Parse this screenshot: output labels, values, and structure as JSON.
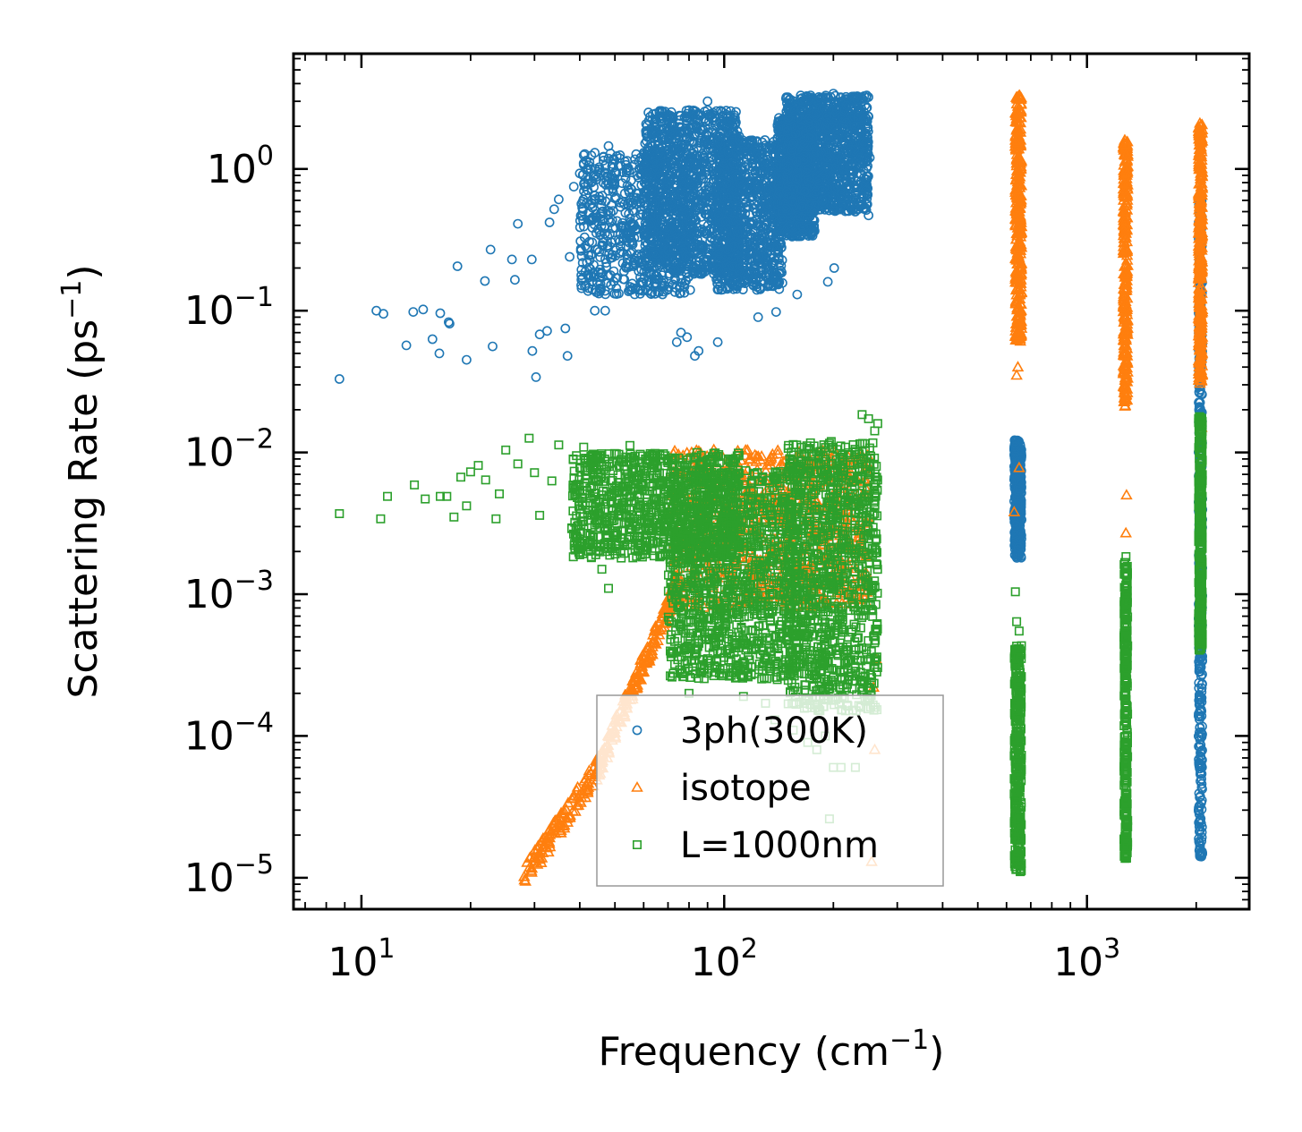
{
  "chart_data": {
    "type": "scatter",
    "xscale": "log",
    "yscale": "log",
    "xlim": [
      6.5,
      2800
    ],
    "ylim": [
      6e-06,
      6.5
    ],
    "xlabel": "Frequency (cm",
    "xlabel_sup": "−1",
    "xlabel_end": ")",
    "ylabel": "Scattering Rate (ps",
    "ylabel_sup": "−1",
    "ylabel_end": ")",
    "x_ticks": [
      {
        "value": 10,
        "base": "10",
        "exp": "1"
      },
      {
        "value": 100,
        "base": "10",
        "exp": "2"
      },
      {
        "value": 1000,
        "base": "10",
        "exp": "3"
      }
    ],
    "y_ticks": [
      {
        "value": 1,
        "base": "10",
        "exp": "0"
      },
      {
        "value": 0.1,
        "base": "10",
        "exp": "−1"
      },
      {
        "value": 0.01,
        "base": "10",
        "exp": "−2"
      },
      {
        "value": 0.001,
        "base": "10",
        "exp": "−3"
      },
      {
        "value": 0.0001,
        "base": "10",
        "exp": "−4"
      },
      {
        "value": 1e-05,
        "base": "10",
        "exp": "−5"
      }
    ],
    "legend_position": "lower-center",
    "series": [
      {
        "name": "3ph(300K)",
        "marker": "circle",
        "color": "#1f77b4",
        "points": [
          [
            8.7,
            0.033
          ],
          [
            11.0,
            0.1
          ],
          [
            11.5,
            0.095
          ],
          [
            13.3,
            0.057
          ],
          [
            13.9,
            0.098
          ],
          [
            14.8,
            0.102
          ],
          [
            16.5,
            0.096
          ],
          [
            15.7,
            0.063
          ],
          [
            16.4,
            0.05
          ],
          [
            17.5,
            0.081
          ],
          [
            17.4,
            0.083
          ],
          [
            19.5,
            0.045
          ],
          [
            18.4,
            0.206
          ],
          [
            21.9,
            0.162
          ],
          [
            23.0,
            0.056
          ],
          [
            22.7,
            0.27
          ],
          [
            26.0,
            0.23
          ],
          [
            26.5,
            0.165
          ],
          [
            27.0,
            0.41
          ],
          [
            29.5,
            0.23
          ],
          [
            29.6,
            0.052
          ],
          [
            30.3,
            0.034
          ],
          [
            31.0,
            0.068
          ],
          [
            32.5,
            0.072
          ],
          [
            33.0,
            0.42
          ],
          [
            34.0,
            0.52
          ],
          [
            35.0,
            0.61
          ],
          [
            36.5,
            0.075
          ],
          [
            37.0,
            0.048
          ],
          [
            37.5,
            0.24
          ],
          [
            38.5,
            0.75
          ],
          [
            40.0,
            0.93
          ],
          [
            41.0,
            1.25
          ],
          [
            43.0,
            0.8
          ],
          [
            44.0,
            1.3
          ],
          [
            44.0,
            0.1
          ],
          [
            46.0,
            0.5
          ],
          [
            47.0,
            0.1
          ],
          [
            48.0,
            1.45
          ],
          [
            50.0,
            0.62
          ],
          [
            52.0,
            1.05
          ],
          [
            55.0,
            0.6
          ],
          [
            58.0,
            0.25
          ],
          [
            60.0,
            1.3
          ],
          [
            74.0,
            0.06
          ],
          [
            76.0,
            0.07
          ],
          [
            79.0,
            0.065
          ],
          [
            83.0,
            0.048
          ],
          [
            85.0,
            0.052
          ],
          [
            96.0,
            0.06
          ],
          [
            124.0,
            0.09
          ],
          [
            139.0,
            0.098
          ],
          [
            159.0,
            0.13
          ],
          [
            193.0,
            0.16
          ],
          [
            201.0,
            0.2
          ],
          [
            233.0,
            0.77
          ],
          [
            250.0,
            0.47
          ],
          [
            247.0,
            2.7
          ],
          [
            252.0,
            1.2
          ],
          [
            190.0,
            3.2
          ],
          [
            200.0,
            3.4
          ],
          [
            170.0,
            3.1
          ],
          [
            150.0,
            2.3
          ],
          [
            110.0,
            1.7
          ],
          [
            90.0,
            3.0
          ],
          [
            80.0,
            2.6
          ],
          [
            102.0,
            0.27
          ],
          [
            130.0,
            0.55
          ]
        ],
        "clusters": [
          {
            "xmin": 40,
            "xmax": 82,
            "ymin": 0.13,
            "ymax": 1.3,
            "n": 700
          },
          {
            "xmin": 60,
            "xmax": 110,
            "ymin": 0.18,
            "ymax": 2.6,
            "n": 1100
          },
          {
            "xmin": 95,
            "xmax": 145,
            "ymin": 0.14,
            "ymax": 1.6,
            "n": 900
          },
          {
            "xmin": 140,
            "xmax": 178,
            "ymin": 0.33,
            "ymax": 2.3,
            "n": 700
          },
          {
            "xmin": 148,
            "xmax": 250,
            "ymin": 0.5,
            "ymax": 3.3,
            "n": 1200
          },
          {
            "xmin": 630,
            "xmax": 660,
            "ymin": 0.0018,
            "ymax": 0.0125,
            "n": 350
          },
          {
            "xmin": 2030,
            "xmax": 2080,
            "ymin": 1.4e-05,
            "ymax": 0.65,
            "n": 400
          }
        ]
      },
      {
        "name": "isotope",
        "marker": "triangle",
        "color": "#ff7f0e",
        "points": [
          [
            630.0,
            0.0038
          ],
          [
            650.0,
            0.0078
          ],
          [
            1285.0,
            0.005
          ],
          [
            1280.0,
            0.0027
          ],
          [
            260.0,
            8e-05
          ],
          [
            255.0,
            1.3e-05
          ],
          [
            258.0,
            0.00022
          ],
          [
            262.0,
            0.00035
          ],
          [
            640.0,
            0.035
          ],
          [
            645.0,
            0.04
          ],
          [
            1275.0,
            0.028
          ],
          [
            2070.0,
            0.015
          ],
          [
            2050.0,
            0.04
          ]
        ],
        "clusters": [
          {
            "xmin": 28,
            "xmax": 45,
            "ymin": 1e-05,
            "ymax": 6e-05,
            "n": 120,
            "trend": "power",
            "k": 3.8
          },
          {
            "xmin": 45,
            "xmax": 75,
            "ymin": 6e-05,
            "ymax": 0.0012,
            "n": 180,
            "trend": "power",
            "k": 3.8
          },
          {
            "xmin": 72,
            "xmax": 250,
            "ymin": 0.0008,
            "ymax": 0.0105,
            "n": 800
          },
          {
            "xmin": 635,
            "xmax": 660,
            "ymin": 0.06,
            "ymax": 3.3,
            "n": 350
          },
          {
            "xmin": 1260,
            "xmax": 1295,
            "ymin": 0.021,
            "ymax": 1.6,
            "n": 300
          },
          {
            "xmin": 2030,
            "xmax": 2080,
            "ymin": 0.03,
            "ymax": 2.1,
            "n": 350
          }
        ]
      },
      {
        "name": "L=1000nm",
        "marker": "square",
        "color": "#2ca02c",
        "points": [
          [
            8.7,
            0.0037
          ],
          [
            11.3,
            0.0034
          ],
          [
            11.8,
            0.0049
          ],
          [
            14.0,
            0.0059
          ],
          [
            15.0,
            0.0047
          ],
          [
            16.5,
            0.0049
          ],
          [
            17.2,
            0.0049
          ],
          [
            18.0,
            0.0035
          ],
          [
            18.8,
            0.0067
          ],
          [
            19.5,
            0.0042
          ],
          [
            20.0,
            0.0073
          ],
          [
            21.0,
            0.0081
          ],
          [
            22.0,
            0.0064
          ],
          [
            23.5,
            0.0034
          ],
          [
            24.0,
            0.0051
          ],
          [
            25.0,
            0.0104
          ],
          [
            27.0,
            0.0083
          ],
          [
            29.0,
            0.0126
          ],
          [
            30.0,
            0.0072
          ],
          [
            31.0,
            0.0036
          ],
          [
            33.5,
            0.0063
          ],
          [
            35.0,
            0.0113
          ],
          [
            38.0,
            0.0029
          ],
          [
            40.0,
            0.0019
          ],
          [
            41.0,
            0.0109
          ],
          [
            44.0,
            0.0087
          ],
          [
            46.0,
            0.0015
          ],
          [
            48.0,
            0.0011
          ],
          [
            52.0,
            0.0089
          ],
          [
            55.0,
            0.0112
          ],
          [
            80.0,
            0.0002
          ],
          [
            108.0,
            0.00035
          ],
          [
            113.0,
            0.00019
          ],
          [
            130.0,
            0.00017
          ],
          [
            138.0,
            0.00013
          ],
          [
            155.0,
            0.00011
          ],
          [
            170.0,
            9e-05
          ],
          [
            180.0,
            8e-05
          ],
          [
            190.0,
            0.0001
          ],
          [
            195.0,
            2.6e-05
          ],
          [
            200.0,
            6e-05
          ],
          [
            210.0,
            6e-05
          ],
          [
            230.0,
            6e-05
          ],
          [
            240.0,
            0.0185
          ],
          [
            250.0,
            0.0173
          ],
          [
            260.0,
            0.0142
          ],
          [
            265.0,
            0.016
          ],
          [
            635.0,
            0.00104
          ],
          [
            640.0,
            0.00064
          ],
          [
            650.0,
            0.00055
          ]
        ],
        "clusters": [
          {
            "xmin": 38,
            "xmax": 110,
            "ymin": 0.0018,
            "ymax": 0.01,
            "n": 900
          },
          {
            "xmin": 70,
            "xmax": 160,
            "ymin": 0.00025,
            "ymax": 0.0075,
            "n": 1100
          },
          {
            "xmin": 150,
            "xmax": 265,
            "ymin": 0.00015,
            "ymax": 0.012,
            "n": 1000
          },
          {
            "xmin": 630,
            "xmax": 660,
            "ymin": 1.1e-05,
            "ymax": 0.00045,
            "n": 350
          },
          {
            "xmin": 1265,
            "xmax": 1295,
            "ymin": 1.3e-05,
            "ymax": 0.0019,
            "n": 300
          },
          {
            "xmin": 2030,
            "xmax": 2080,
            "ymin": 0.0004,
            "ymax": 0.018,
            "n": 300
          }
        ]
      }
    ]
  },
  "legend": {
    "items": [
      "3ph(300K)",
      "isotope",
      "L=1000nm"
    ]
  }
}
